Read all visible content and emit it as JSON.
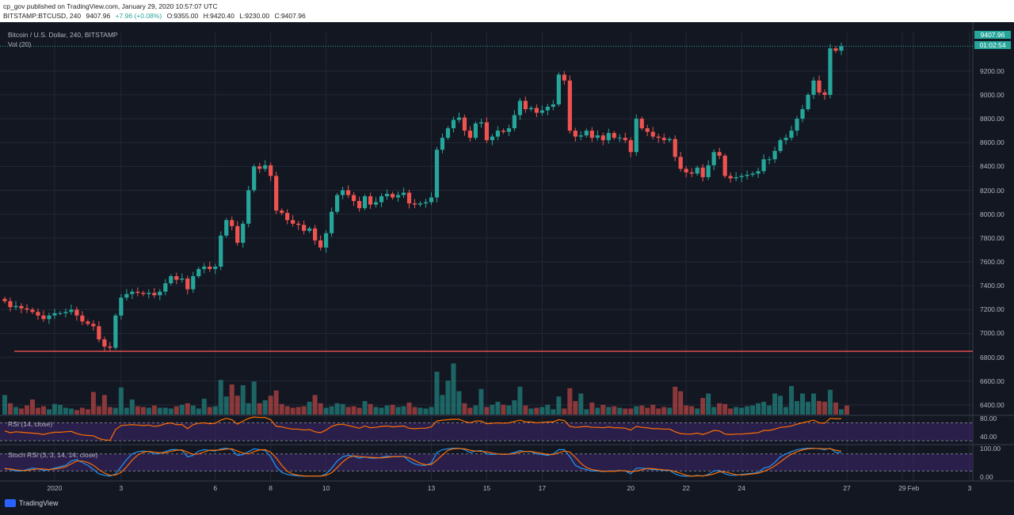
{
  "header": {
    "publisher": "cp_gov published on TradingView.com, January 29, 2020 10:57:07 UTC",
    "symbol": "BITSTAMP:BTCUSD, 240",
    "last": "9407.96",
    "change": "+7.96 (+0.08%)",
    "open": "O:9355.00",
    "high": "H:9420.40",
    "low": "L:9230.00",
    "close": "C:9407.96"
  },
  "legend": {
    "title": "Bitcoin / U.S. Dollar, 240, BITSTAMP",
    "volume": "Vol (20)",
    "rsi": "RSI (14, close)",
    "stoch": "Stoch RSI (3, 3, 14, 14, close)"
  },
  "colors": {
    "background": "#131722",
    "up": "#26a69a",
    "down": "#ef5350",
    "support_line": "#ef5350",
    "rsi_line": "#ff6d00",
    "stoch_k": "#2196f3",
    "stoch_d": "#ff6d00",
    "band_fill": "#3b2566"
  },
  "price_labels": {
    "last": "9407.96",
    "countdown": "01:02:54"
  },
  "brand": {
    "name": "TradingView",
    "icon": "tradingview-logo-icon"
  },
  "chart_data": [
    {
      "type": "candlestick",
      "title": "Bitcoin / U.S. Dollar, 240, BITSTAMP",
      "ylim": [
        6320,
        9530
      ],
      "yticks": [
        6400,
        6600,
        6800,
        7000,
        7200,
        7400,
        7600,
        7800,
        8000,
        8200,
        8400,
        8600,
        8800,
        9000,
        9200
      ],
      "x_tick_labels": [
        "2020",
        "3",
        "6",
        "8",
        "10",
        "13",
        "15",
        "17",
        "20",
        "22",
        "24",
        "27",
        "29",
        "Feb",
        "3"
      ],
      "support_level": 6850,
      "last_price": 9407.96,
      "close_series": [
        7270,
        7220,
        7230,
        7210,
        7200,
        7180,
        7150,
        7120,
        7150,
        7170,
        7170,
        7180,
        7200,
        7150,
        7100,
        7080,
        7060,
        6950,
        6890,
        6880,
        7150,
        7300,
        7330,
        7350,
        7340,
        7330,
        7340,
        7320,
        7350,
        7420,
        7480,
        7450,
        7460,
        7370,
        7480,
        7540,
        7560,
        7540,
        7560,
        7820,
        7950,
        7900,
        7760,
        7920,
        8200,
        8400,
        8380,
        8410,
        8320,
        8030,
        8010,
        7950,
        7920,
        7910,
        7860,
        7880,
        7780,
        7720,
        7840,
        8020,
        8160,
        8200,
        8160,
        8110,
        8050,
        8150,
        8080,
        8100,
        8150,
        8170,
        8140,
        8160,
        8180,
        8090,
        8080,
        8090,
        8100,
        8140,
        8540,
        8640,
        8720,
        8790,
        8810,
        8700,
        8640,
        8760,
        8770,
        8620,
        8650,
        8700,
        8690,
        8720,
        8830,
        8950,
        8880,
        8890,
        8850,
        8870,
        8900,
        8920,
        9170,
        9120,
        8700,
        8650,
        8660,
        8700,
        8640,
        8660,
        8620,
        8680,
        8640,
        8640,
        8620,
        8520,
        8800,
        8720,
        8690,
        8650,
        8640,
        8620,
        8630,
        8480,
        8380,
        8350,
        8340,
        8390,
        8310,
        8410,
        8520,
        8490,
        8320,
        8300,
        8310,
        8320,
        8330,
        8340,
        8360,
        8460,
        8460,
        8530,
        8620,
        8640,
        8700,
        8800,
        8880,
        9000,
        9120,
        9020,
        9000,
        9390,
        9370,
        9408
      ]
    },
    {
      "type": "bar",
      "title": "Vol (20)",
      "values": [
        26,
        15,
        10,
        8,
        12,
        20,
        9,
        11,
        7,
        14,
        13,
        9,
        8,
        6,
        9,
        7,
        30,
        11,
        26,
        10,
        9,
        36,
        9,
        20,
        11,
        10,
        9,
        12,
        9,
        9,
        8,
        11,
        13,
        15,
        12,
        8,
        21,
        10,
        11,
        46,
        24,
        40,
        25,
        39,
        15,
        44,
        15,
        19,
        25,
        32,
        14,
        11,
        9,
        10,
        11,
        17,
        26,
        15,
        9,
        11,
        15,
        14,
        10,
        11,
        9,
        18,
        14,
        10,
        9,
        12,
        13,
        10,
        11,
        16,
        10,
        9,
        8,
        10,
        57,
        26,
        45,
        68,
        31,
        15,
        9,
        12,
        34,
        10,
        13,
        17,
        13,
        12,
        19,
        37,
        12,
        8,
        9,
        10,
        13,
        7,
        24,
        8,
        35,
        18,
        28,
        7,
        16,
        9,
        13,
        10,
        11,
        9,
        8,
        8,
        11,
        12,
        9,
        13,
        8,
        10,
        9,
        37,
        31,
        12,
        11,
        8,
        22,
        28,
        10,
        15,
        14,
        8,
        10,
        9,
        11,
        12,
        15,
        17,
        12,
        28,
        25,
        10,
        38,
        18,
        28,
        17,
        28,
        18,
        17,
        33,
        16,
        7,
        12
      ],
      "ylim": [
        0,
        100
      ]
    },
    {
      "type": "line",
      "title": "RSI (14, close)",
      "ylim": [
        25,
        85
      ],
      "yticks": [
        40,
        80
      ],
      "bands": [
        70,
        30
      ],
      "values": [
        52,
        48,
        50,
        49,
        48,
        47,
        46,
        44,
        47,
        49,
        49,
        50,
        51,
        46,
        43,
        42,
        41,
        35,
        32,
        31,
        55,
        64,
        65,
        66,
        65,
        64,
        65,
        62,
        64,
        68,
        70,
        66,
        66,
        57,
        66,
        69,
        70,
        68,
        69,
        76,
        80,
        77,
        67,
        74,
        80,
        83,
        82,
        82,
        77,
        62,
        61,
        58,
        56,
        56,
        54,
        55,
        50,
        48,
        54,
        62,
        66,
        67,
        64,
        61,
        58,
        63,
        59,
        60,
        62,
        63,
        61,
        62,
        63,
        58,
        57,
        58,
        58,
        61,
        74,
        76,
        77,
        78,
        78,
        73,
        70,
        74,
        74,
        68,
        69,
        70,
        69,
        70,
        73,
        76,
        72,
        72,
        70,
        71,
        72,
        72,
        77,
        75,
        62,
        60,
        61,
        62,
        60,
        60,
        59,
        61,
        59,
        59,
        58,
        54,
        62,
        60,
        59,
        57,
        57,
        56,
        56,
        50,
        46,
        45,
        45,
        47,
        44,
        48,
        53,
        52,
        45,
        44,
        45,
        45,
        46,
        47,
        48,
        53,
        53,
        56,
        60,
        61,
        63,
        67,
        70,
        73,
        76,
        70,
        69,
        80,
        79,
        79
      ]
    },
    {
      "type": "line",
      "title": "Stoch RSI (3, 3, 14, 14, close)",
      "ylim": [
        -15,
        110
      ],
      "yticks": [
        0,
        100
      ],
      "bands": [
        80,
        20
      ],
      "series": [
        {
          "values": [
            30,
            25,
            20,
            20,
            25,
            30,
            28,
            22,
            25,
            30,
            35,
            40,
            55,
            60,
            50,
            40,
            25,
            10,
            5,
            2,
            10,
            35,
            60,
            80,
            88,
            90,
            88,
            80,
            82,
            88,
            95,
            95,
            92,
            70,
            75,
            90,
            95,
            92,
            90,
            98,
            100,
            95,
            75,
            78,
            88,
            98,
            95,
            92,
            70,
            35,
            15,
            8,
            5,
            3,
            2,
            2,
            2,
            2,
            10,
            30,
            55,
            70,
            75,
            72,
            65,
            70,
            65,
            65,
            68,
            72,
            70,
            70,
            72,
            55,
            45,
            40,
            40,
            48,
            85,
            95,
            98,
            100,
            100,
            95,
            85,
            90,
            92,
            80,
            78,
            80,
            78,
            80,
            85,
            92,
            88,
            88,
            80,
            78,
            75,
            80,
            95,
            95,
            70,
            40,
            30,
            25,
            20,
            20,
            18,
            20,
            20,
            22,
            20,
            10,
            30,
            30,
            28,
            25,
            25,
            22,
            22,
            10,
            3,
            2,
            2,
            5,
            2,
            8,
            20,
            22,
            10,
            5,
            5,
            8,
            10,
            12,
            15,
            30,
            35,
            50,
            70,
            80,
            88,
            95,
            98,
            100,
            100,
            98,
            95,
            100,
            85,
            85
          ]
        },
        {
          "values": [
            28,
            27,
            24,
            22,
            22,
            25,
            28,
            27,
            25,
            27,
            30,
            35,
            45,
            55,
            55,
            50,
            40,
            25,
            13,
            5,
            6,
            15,
            35,
            58,
            76,
            86,
            89,
            86,
            84,
            84,
            89,
            93,
            94,
            86,
            79,
            80,
            87,
            93,
            93,
            94,
            97,
            98,
            90,
            83,
            80,
            88,
            94,
            95,
            86,
            66,
            40,
            19,
            9,
            5,
            3,
            2,
            2,
            2,
            5,
            14,
            32,
            52,
            67,
            73,
            71,
            69,
            68,
            67,
            66,
            68,
            70,
            71,
            71,
            66,
            57,
            47,
            42,
            43,
            58,
            76,
            93,
            98,
            99,
            98,
            93,
            90,
            89,
            87,
            83,
            80,
            79,
            79,
            81,
            86,
            89,
            89,
            85,
            82,
            78,
            78,
            84,
            90,
            87,
            68,
            47,
            32,
            25,
            22,
            19,
            19,
            19,
            21,
            21,
            17,
            20,
            24,
            29,
            28,
            26,
            24,
            23,
            18,
            12,
            5,
            2,
            3,
            3,
            5,
            10,
            17,
            17,
            12,
            7,
            6,
            8,
            10,
            12,
            19,
            27,
            38,
            52,
            67,
            79,
            88,
            94,
            98,
            99,
            99,
            98,
            98,
            93,
            90
          ]
        }
      ]
    }
  ]
}
